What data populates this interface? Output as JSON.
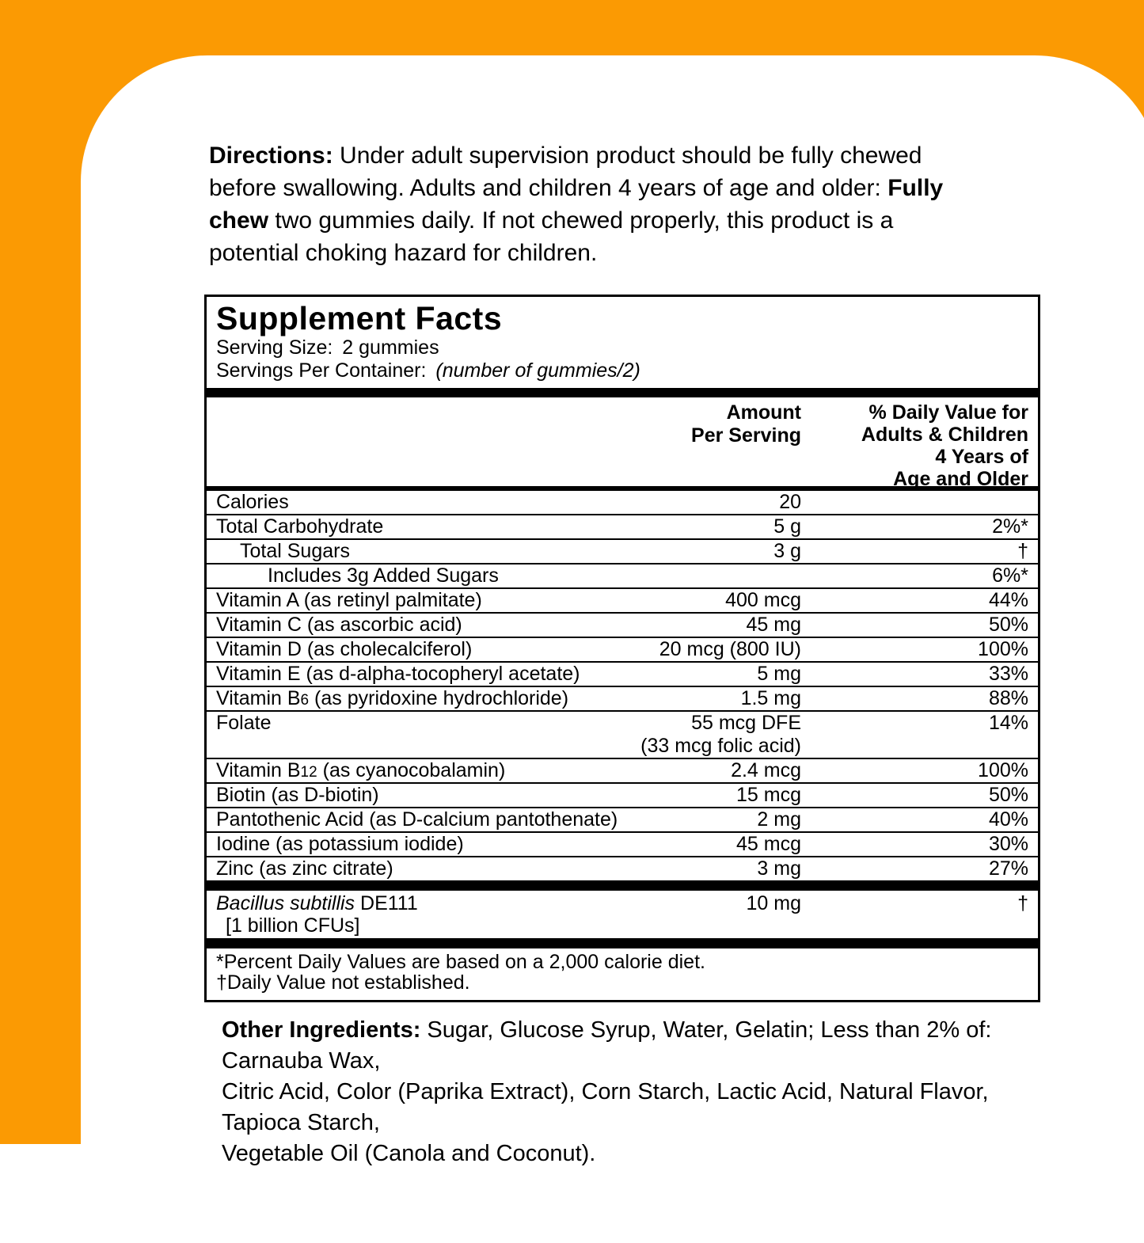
{
  "theme": {
    "accent_color": "#FB9A03",
    "panel_color": "#FFFFFF",
    "text_color": "#000000"
  },
  "directions": {
    "lines": [
      {
        "b1": "Directions:",
        "t": " Under adult supervision product should be fully chewed",
        "b2": ""
      },
      {
        "b1": "",
        "t": "before swallowing. Adults and children 4 years of age and older: ",
        "b2": "Fully"
      },
      {
        "b1": "chew",
        "t": " two gummies daily. If not chewed properly, this product is a",
        "b2": ""
      },
      {
        "b1": "",
        "t": "potential choking hazard for children.",
        "b2": ""
      }
    ]
  },
  "supplement_facts": {
    "title": "Supplement Facts",
    "serving_size": {
      "label": "Serving Size:",
      "value": "2 gummies"
    },
    "servings_per_container": {
      "label": "Servings Per Container:",
      "value": "(number of gummies/2)"
    },
    "header": {
      "amount_lines": [
        "Amount",
        "Per Serving"
      ],
      "dv_lines": [
        "% Daily Value for",
        "Adults & Children",
        "4 Years of",
        "Age and Older"
      ]
    },
    "rows": [
      {
        "label": "Calories",
        "amount": "20",
        "dv": ""
      },
      {
        "label": "Total Carbohydrate",
        "amount": "5 g",
        "dv": "2%*"
      },
      {
        "label": "Total Sugars",
        "amount": "3 g",
        "dv": "†"
      },
      {
        "label": "Includes 3g Added Sugars",
        "amount": "",
        "dv": "6%*"
      },
      {
        "label": "Vitamin A (as retinyl palmitate)",
        "amount": "400 mcg",
        "dv": "44%"
      },
      {
        "label": "Vitamin C (as ascorbic acid)",
        "amount": "45 mg",
        "dv": "50%"
      },
      {
        "label": "Vitamin D (as cholecalciferol)",
        "amount": "20 mcg (800 IU)",
        "dv": "100%"
      },
      {
        "label": "Vitamin E (as d-alpha-tocopheryl acetate)",
        "amount": "5 mg",
        "dv": "33%"
      },
      {
        "label_pre": "Vitamin B",
        "label_sub": "6",
        "label_post": " (as pyridoxine hydrochloride)",
        "amount": "1.5 mg",
        "dv": "88%"
      },
      {
        "label": "Folate",
        "amount": "55 mcg DFE",
        "amount_line2": "(33 mcg folic acid)",
        "dv": "14%"
      },
      {
        "label_pre": "Vitamin B",
        "label_sub": "12",
        "label_post": " (as cyanocobalamin)",
        "amount": "2.4 mcg",
        "dv": "100%"
      },
      {
        "label": "Biotin (as D-biotin)",
        "amount": "15 mcg",
        "dv": "50%"
      },
      {
        "label": "Pantothenic Acid (as D-calcium pantothenate)",
        "amount": "2 mg",
        "dv": "40%"
      },
      {
        "label": "Iodine (as potassium iodide)",
        "amount": "45 mcg",
        "dv": "30%"
      },
      {
        "label": "Zinc (as zinc citrate)",
        "amount": "3 mg",
        "dv": "27%"
      }
    ],
    "probiotic_row": {
      "name_italic": "Bacillus subtillis",
      "name_rest": " DE111",
      "line2": "[1 billion CFUs]",
      "amount": "10 mg",
      "dv": "†"
    },
    "footnotes": [
      "*Percent Daily Values are based on a 2,000 calorie diet.",
      "†Daily Value not established."
    ]
  },
  "other_ingredients": {
    "lines": [
      {
        "b1": "Other Ingredients:",
        "t": " Sugar, Glucose Syrup, Water, Gelatin; Less than 2% of:  Carnauba Wax,"
      },
      {
        "b1": "",
        "t": "Citric Acid, Color (Paprika Extract), Corn Starch, Lactic Acid, Natural Flavor, Tapioca Starch,"
      },
      {
        "b1": "",
        "t": "Vegetable Oil (Canola and Coconut)."
      }
    ]
  }
}
